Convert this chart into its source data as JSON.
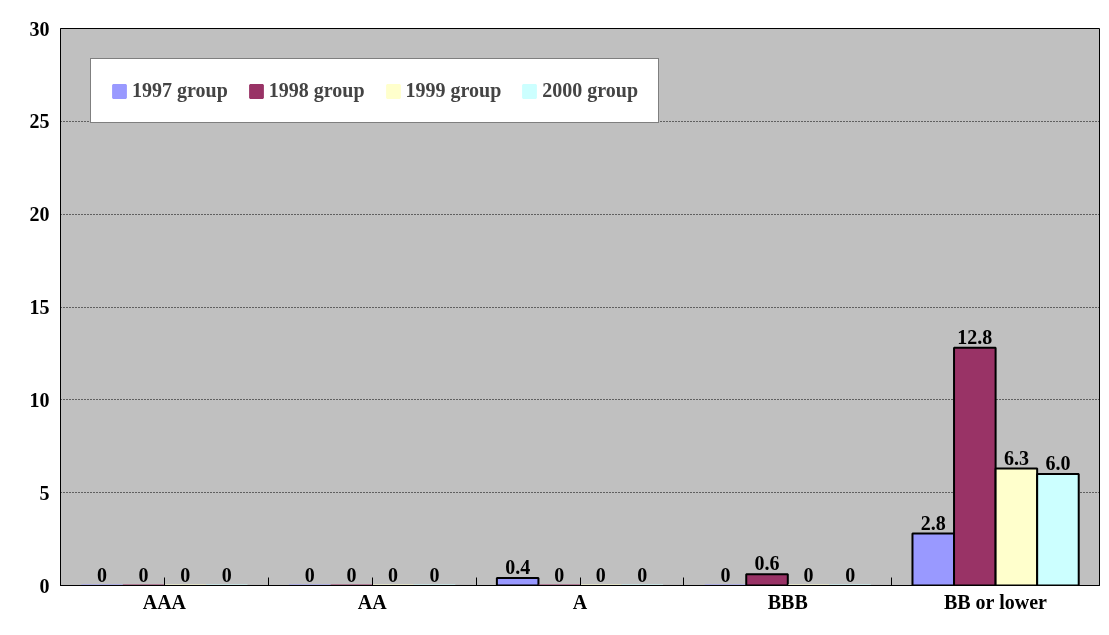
{
  "chart_data": {
    "type": "bar",
    "categories": [
      "AAA",
      "AA",
      "A",
      "BBB",
      "BB or lower"
    ],
    "series": [
      {
        "name": "1997 group",
        "color": "#9999ff",
        "values": [
          0,
          0,
          0.4,
          0,
          2.8
        ],
        "value_labels": [
          "0",
          "0",
          "0.4",
          "0",
          "2.8"
        ]
      },
      {
        "name": "1998 group",
        "color": "#993366",
        "values": [
          0,
          0,
          0,
          0.6,
          12.8
        ],
        "value_labels": [
          "0",
          "0",
          "0",
          "0.6",
          "12.8"
        ]
      },
      {
        "name": "1999 group",
        "color": "#ffffcc",
        "values": [
          0,
          0,
          0,
          0,
          6.3
        ],
        "value_labels": [
          "0",
          "0",
          "0",
          "0",
          "6.3"
        ]
      },
      {
        "name": "2000 group",
        "color": "#ccffff",
        "values": [
          0,
          0,
          0,
          0,
          6.0
        ],
        "value_labels": [
          "0",
          "0",
          "0",
          "0",
          "6.0"
        ]
      }
    ],
    "ylim": [
      0,
      30
    ],
    "yticks": [
      0,
      5,
      10,
      15,
      20,
      25,
      30
    ],
    "grid": "y",
    "legend": "top left"
  }
}
